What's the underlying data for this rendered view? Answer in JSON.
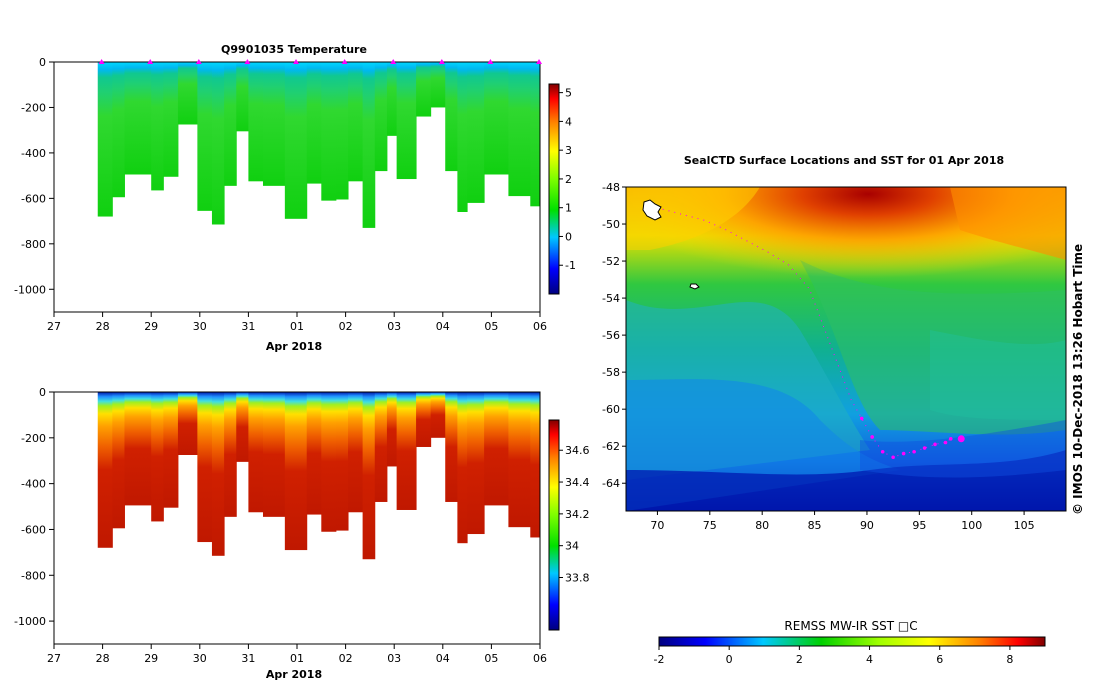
{
  "chart_data": [
    {
      "type": "heatmap",
      "panel": "temperature-section",
      "title": "Q9901035  Temperature",
      "xlabel": "Apr 2018",
      "x_tick_labels": [
        "27",
        "28",
        "29",
        "30",
        "31",
        "01",
        "02",
        "03",
        "04",
        "05",
        "06"
      ],
      "xlim_days": [
        0,
        10
      ],
      "y_tick_labels": [
        "0",
        "-200",
        "-400",
        "-600",
        "-800",
        "-1000"
      ],
      "y_ticks": [
        0,
        -200,
        -400,
        -600,
        -800,
        -1000
      ],
      "ylim": [
        -1100,
        0
      ],
      "colorbar": {
        "min": -2,
        "max": 5.3,
        "ticks": [
          5,
          4,
          3,
          2,
          1,
          0,
          -1
        ],
        "tick_labels": [
          "5",
          "4",
          "3",
          "2",
          "1",
          "0",
          "-1"
        ]
      },
      "profile_times_days": [
        0.98,
        1.98,
        2.98,
        3.98,
        4.98,
        5.98,
        6.98,
        7.98,
        8.98,
        9.98
      ],
      "profiles": [
        {
          "start": 0.9,
          "end": 1.2,
          "max_depth": -680
        },
        {
          "start": 1.2,
          "end": 1.45,
          "max_depth": -595
        },
        {
          "start": 1.45,
          "end": 2.0,
          "max_depth": -495
        },
        {
          "start": 2.0,
          "end": 2.25,
          "max_depth": -565
        },
        {
          "start": 2.25,
          "end": 2.55,
          "max_depth": -505
        },
        {
          "start": 2.55,
          "end": 2.95,
          "max_depth": -275
        },
        {
          "start": 2.95,
          "end": 3.25,
          "max_depth": -655
        },
        {
          "start": 3.25,
          "end": 3.5,
          "max_depth": -715
        },
        {
          "start": 3.5,
          "end": 3.75,
          "max_depth": -545
        },
        {
          "start": 3.75,
          "end": 4.0,
          "max_depth": -305
        },
        {
          "start": 4.0,
          "end": 4.3,
          "max_depth": -525
        },
        {
          "start": 4.3,
          "end": 4.75,
          "max_depth": -545
        },
        {
          "start": 4.75,
          "end": 5.2,
          "max_depth": -690
        },
        {
          "start": 5.2,
          "end": 5.5,
          "max_depth": -535
        },
        {
          "start": 5.5,
          "end": 5.8,
          "max_depth": -610
        },
        {
          "start": 5.8,
          "end": 6.05,
          "max_depth": -605
        },
        {
          "start": 6.05,
          "end": 6.35,
          "max_depth": -525
        },
        {
          "start": 6.35,
          "end": 6.6,
          "max_depth": -730
        },
        {
          "start": 6.6,
          "end": 6.85,
          "max_depth": -480
        },
        {
          "start": 6.85,
          "end": 7.05,
          "max_depth": -325
        },
        {
          "start": 7.05,
          "end": 7.45,
          "max_depth": -515
        },
        {
          "start": 7.45,
          "end": 7.75,
          "max_depth": -240
        },
        {
          "start": 7.75,
          "end": 8.05,
          "max_depth": -200
        },
        {
          "start": 8.05,
          "end": 8.3,
          "max_depth": -480
        },
        {
          "start": 8.3,
          "end": 8.5,
          "max_depth": -660
        },
        {
          "start": 8.5,
          "end": 8.85,
          "max_depth": -620
        },
        {
          "start": 8.85,
          "end": 9.35,
          "max_depth": -495
        },
        {
          "start": 9.35,
          "end": 9.8,
          "max_depth": -590
        },
        {
          "start": 9.8,
          "end": 10.0,
          "max_depth": -635
        }
      ]
    },
    {
      "type": "heatmap",
      "panel": "salinity-section",
      "title": "",
      "xlabel": "Apr 2018",
      "x_tick_labels": [
        "27",
        "28",
        "29",
        "30",
        "31",
        "01",
        "02",
        "03",
        "04",
        "05",
        "06"
      ],
      "xlim_days": [
        0,
        10
      ],
      "y_tick_labels": [
        "0",
        "-200",
        "-400",
        "-600",
        "-800",
        "-1000"
      ],
      "y_ticks": [
        0,
        -200,
        -400,
        -600,
        -800,
        -1000
      ],
      "ylim": [
        -1100,
        0
      ],
      "colorbar": {
        "min": 33.47,
        "max": 34.79,
        "ticks": [
          34.6,
          34.4,
          34.2,
          34,
          33.8
        ],
        "tick_labels": [
          "34.6",
          "34.4",
          "34.2",
          "34",
          "33.8"
        ]
      }
    },
    {
      "type": "heatmap",
      "panel": "sst-map",
      "title": "SealCTD Surface Locations and SST for 01 Apr 2018",
      "x_tick_labels": [
        "70",
        "75",
        "80",
        "85",
        "90",
        "95",
        "100",
        "105"
      ],
      "x_ticks": [
        70,
        75,
        80,
        85,
        90,
        95,
        100,
        105
      ],
      "xlim": [
        67,
        109
      ],
      "y_tick_labels": [
        "-48",
        "-50",
        "-52",
        "-54",
        "-56",
        "-58",
        "-60",
        "-62",
        "-64"
      ],
      "y_ticks": [
        -48,
        -50,
        -52,
        -54,
        -56,
        -58,
        -60,
        -62,
        -64
      ],
      "ylim": [
        -65.5,
        -48
      ],
      "colorbar_title": "REMSS MW-IR SST □C",
      "colorbar": {
        "min": -2,
        "max": 9,
        "ticks": [
          -2,
          0,
          2,
          4,
          6,
          8
        ],
        "tick_labels": [
          "-2",
          "0",
          "2",
          "4",
          "6",
          "8"
        ]
      },
      "track_lon": [
        70.5,
        72.5,
        74.5,
        76.5,
        78.5,
        80.5,
        82.5,
        84.5,
        85.5,
        86.5,
        87.5,
        88.5,
        89.5,
        90.5,
        91.5,
        92.5,
        93.5,
        94.5,
        95.5,
        96.5,
        97.5,
        98.0
      ],
      "track_lat": [
        -49.2,
        -49.5,
        -49.8,
        -50.3,
        -50.9,
        -51.5,
        -52.2,
        -53.5,
        -55.0,
        -56.5,
        -58.0,
        -59.5,
        -60.5,
        -61.5,
        -62.3,
        -62.6,
        -62.4,
        -62.3,
        -62.1,
        -61.9,
        -61.8,
        -61.6
      ],
      "current_position": [
        99.0,
        -61.6
      ],
      "credit": "© IMOS 10-Dec-2018 13:26 Hobart Time"
    }
  ]
}
